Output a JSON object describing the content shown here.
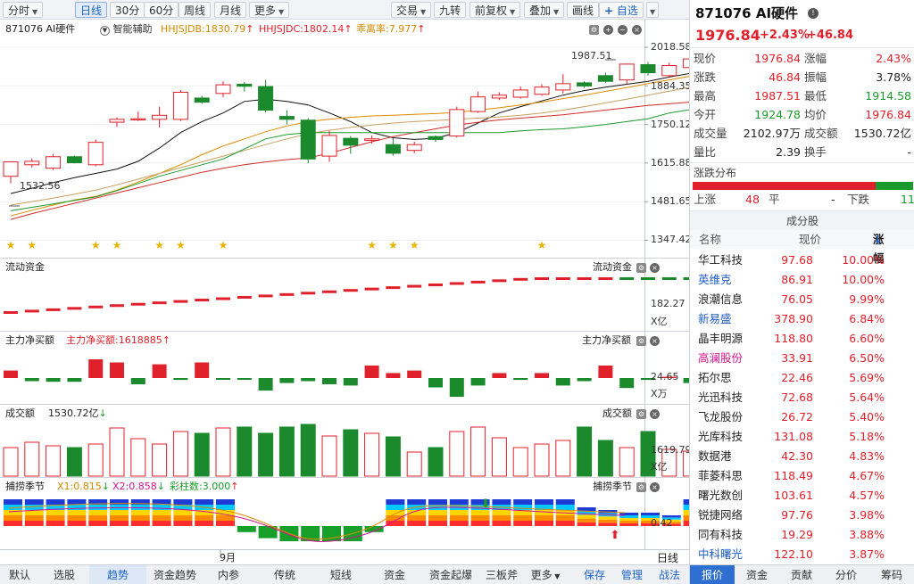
{
  "toolbar": {
    "tabs": [
      "分时",
      "日线",
      "30分",
      "60分",
      "周线",
      "月线",
      "更多"
    ],
    "active_index": 1,
    "right_buttons": [
      "交易",
      "九转",
      "前复权",
      "叠加",
      "画线",
      "自选"
    ]
  },
  "main_chart": {
    "symbol_label": "871076 AI硬件",
    "assist_label": "智能辅助",
    "ind1": "HHJSJDB:1830.79",
    "ind2": "HHJSJDC:1802.14",
    "ind3": "乖离率:7.977",
    "max_label": "1987.51",
    "min_label": "1532.56",
    "y_ticks": [
      "2018.58",
      "1884.35",
      "1750.12",
      "1615.88",
      "1481.65",
      "1347.42"
    ],
    "candles": [
      {
        "o": 1570,
        "h": 1620,
        "l": 1545,
        "c": 1620
      },
      {
        "o": 1610,
        "h": 1632,
        "l": 1600,
        "c": 1622
      },
      {
        "o": 1598,
        "h": 1648,
        "l": 1592,
        "c": 1638
      },
      {
        "o": 1638,
        "h": 1642,
        "l": 1615,
        "c": 1617
      },
      {
        "o": 1610,
        "h": 1698,
        "l": 1605,
        "c": 1688
      },
      {
        "o": 1758,
        "h": 1775,
        "l": 1742,
        "c": 1768
      },
      {
        "o": 1766,
        "h": 1795,
        "l": 1762,
        "c": 1770
      },
      {
        "o": 1768,
        "h": 1812,
        "l": 1740,
        "c": 1782
      },
      {
        "o": 1768,
        "h": 1870,
        "l": 1762,
        "c": 1862
      },
      {
        "o": 1842,
        "h": 1850,
        "l": 1822,
        "c": 1828
      },
      {
        "o": 1858,
        "h": 1900,
        "l": 1845,
        "c": 1888
      },
      {
        "o": 1890,
        "h": 1898,
        "l": 1865,
        "c": 1883
      },
      {
        "o": 1882,
        "h": 1905,
        "l": 1792,
        "c": 1800
      },
      {
        "o": 1778,
        "h": 1800,
        "l": 1750,
        "c": 1768
      },
      {
        "o": 1765,
        "h": 1772,
        "l": 1615,
        "c": 1630
      },
      {
        "o": 1640,
        "h": 1728,
        "l": 1620,
        "c": 1712
      },
      {
        "o": 1702,
        "h": 1710,
        "l": 1648,
        "c": 1678
      },
      {
        "o": 1695,
        "h": 1712,
        "l": 1683,
        "c": 1700
      },
      {
        "o": 1680,
        "h": 1702,
        "l": 1642,
        "c": 1650
      },
      {
        "o": 1660,
        "h": 1690,
        "l": 1650,
        "c": 1680
      },
      {
        "o": 1708,
        "h": 1712,
        "l": 1690,
        "c": 1698
      },
      {
        "o": 1710,
        "h": 1812,
        "l": 1705,
        "c": 1802
      },
      {
        "o": 1795,
        "h": 1865,
        "l": 1790,
        "c": 1846
      },
      {
        "o": 1842,
        "h": 1862,
        "l": 1835,
        "c": 1852
      },
      {
        "o": 1845,
        "h": 1882,
        "l": 1840,
        "c": 1870
      },
      {
        "o": 1855,
        "h": 1890,
        "l": 1850,
        "c": 1880
      },
      {
        "o": 1870,
        "h": 1925,
        "l": 1858,
        "c": 1892
      },
      {
        "o": 1895,
        "h": 1900,
        "l": 1878,
        "c": 1884
      },
      {
        "o": 1920,
        "h": 1930,
        "l": 1895,
        "c": 1900
      },
      {
        "o": 1905,
        "h": 1962,
        "l": 1890,
        "c": 1960
      },
      {
        "o": 1958,
        "h": 1968,
        "l": 1920,
        "c": 1930
      },
      {
        "o": 1920,
        "h": 1965,
        "l": 1912,
        "c": 1955
      },
      {
        "o": 1948,
        "h": 1988,
        "l": 1935,
        "c": 1978
      }
    ],
    "ma": {
      "black": [
        1510,
        1528,
        1548,
        1565,
        1580,
        1595,
        1622,
        1668,
        1722,
        1760,
        1790,
        1830,
        1838,
        1830,
        1818,
        1790,
        1760,
        1722,
        1704,
        1698,
        1702,
        1722,
        1755,
        1790,
        1812,
        1832,
        1852,
        1868,
        1880,
        1890,
        1900,
        1915,
        1928
      ],
      "orange": [
        1432,
        1452,
        1470,
        1488,
        1500,
        1522,
        1550,
        1580,
        1610,
        1645,
        1675,
        1700,
        1725,
        1745,
        1760,
        1768,
        1775,
        1780,
        1782,
        1785,
        1788,
        1792,
        1800,
        1808,
        1818,
        1828,
        1840,
        1852,
        1865,
        1878,
        1892,
        1905,
        1918
      ],
      "tan": [
        1470,
        1482,
        1494,
        1508,
        1522,
        1540,
        1560,
        1580,
        1600,
        1620,
        1640,
        1660,
        1680,
        1700,
        1718,
        1730,
        1740,
        1748,
        1755,
        1760,
        1764,
        1768,
        1772,
        1776,
        1782,
        1790,
        1800,
        1812,
        1825,
        1838,
        1852,
        1866,
        1880
      ],
      "red": [
        1420,
        1440,
        1458,
        1476,
        1494,
        1512,
        1530,
        1548,
        1566,
        1584,
        1598,
        1610,
        1620,
        1628,
        1634,
        1650,
        1670,
        1690,
        1708,
        1722,
        1735,
        1748,
        1758,
        1766,
        1772,
        1778,
        1784,
        1792,
        1800,
        1808,
        1816,
        1822,
        1828
      ],
      "green": [
        1450,
        1462,
        1474,
        1486,
        1498,
        1520,
        1545,
        1570,
        1590,
        1610,
        1630,
        1665,
        1700,
        1715,
        1722,
        1722,
        1722,
        1722,
        1722,
        1722,
        1722,
        1722,
        1722,
        1722,
        1728,
        1732,
        1735,
        1742,
        1750,
        1760,
        1770,
        1790,
        1802
      ]
    },
    "star_indices": [
      0,
      1,
      4,
      5,
      7,
      8,
      10,
      17,
      18,
      19,
      25
    ]
  },
  "flow_panel": {
    "title": "流动资金",
    "right_title": "流动资金",
    "tick": "182.27",
    "unit": "X亿",
    "values": [
      -1,
      -2,
      -3,
      -4,
      -5,
      -6,
      -7,
      -8,
      -9,
      -10,
      -11,
      -12,
      -13,
      -14,
      -14,
      -15,
      -15,
      -15,
      -16,
      -16,
      -16,
      -16,
      -16,
      -16,
      -16,
      -16,
      -16,
      -16,
      -16,
      -16,
      -16,
      -17,
      -17
    ]
  },
  "net_panel": {
    "title": "主力净买额",
    "value_label": "主力净买额:1618885",
    "right_title": "主力净买额",
    "tick": "24.65",
    "unit": "X万",
    "values": [
      -12,
      -5,
      -6,
      -6,
      -30,
      -25,
      -10,
      -22,
      -3,
      -25,
      -2,
      0,
      -20,
      -8,
      -5,
      -10,
      -12,
      -20,
      -8,
      -12,
      -15,
      -30,
      -12,
      -8,
      -3,
      -8,
      -12,
      -5,
      -20,
      -16,
      -3,
      -2,
      -8
    ]
  },
  "vol_panel": {
    "title": "成交额",
    "value_label": "1530.72亿",
    "right_title": "成交额",
    "tick": "1619.79",
    "unit": "X亿",
    "values": [
      32,
      38,
      34,
      32,
      36,
      54,
      42,
      36,
      50,
      48,
      54,
      55,
      48,
      55,
      58,
      45,
      52,
      48,
      44,
      27,
      32,
      50,
      55,
      43,
      32,
      36,
      40,
      55,
      40,
      32,
      50,
      30,
      28
    ]
  },
  "season_panel": {
    "title": "捕捞季节",
    "x1": "X1:0.815",
    "x2": "X2:0.858",
    "cai": "彩柱数:3.000",
    "right_title": "捕捞季节",
    "tick": "0.42",
    "values": [
      1,
      1,
      1,
      1,
      1,
      1,
      1,
      1,
      1,
      1,
      1,
      -0.4,
      -0.8,
      -1,
      -1,
      -1,
      -1,
      -0.4,
      1,
      1,
      1,
      1,
      1,
      1,
      1,
      1,
      1,
      0.7,
      0.6,
      0.5,
      0.5,
      0.4,
      1
    ]
  },
  "x_axis": {
    "month": "9月",
    "mode": "日线"
  },
  "bottom_tabs": [
    "默认",
    "选股",
    "趋势",
    "资金趋势",
    "内参",
    "传统",
    "短线",
    "资金",
    "资金起爆",
    "三板斧",
    "更多",
    "保存",
    "管理",
    "战法"
  ],
  "bottom_active": 2,
  "right_panel": {
    "stock_title": "871076 AI硬件",
    "price": "1976.84",
    "change_pct": "+2.43%",
    "change_amt": "+46.84",
    "quotes": [
      [
        "现价",
        "1976.84",
        "red",
        "涨幅",
        "2.43%",
        "red"
      ],
      [
        "涨跌",
        "46.84",
        "red",
        "振幅",
        "3.78%",
        "black"
      ],
      [
        "最高",
        "1987.51",
        "red",
        "最低",
        "1914.58",
        "green"
      ],
      [
        "今开",
        "1924.78",
        "green",
        "均价",
        "1976.84",
        "red"
      ],
      [
        "成交量",
        "2102.97万",
        "black",
        "成交额",
        "1530.72亿",
        "black"
      ],
      [
        "量比",
        "2.39",
        "black",
        "换手",
        "-",
        "black"
      ]
    ],
    "dist_title": "涨跌分布",
    "up_label": "上涨",
    "up_count": "48",
    "flat_label": "平",
    "flat_count": "-",
    "down_label": "下跌",
    "down_count": "11",
    "constituents_title": "成分股",
    "col_name": "名称",
    "col_price": "现价",
    "col_pct": "涨幅",
    "constituents": [
      {
        "name": "华工科技",
        "price": "97.68",
        "pct": "10.00%",
        "color": "black"
      },
      {
        "name": "英维克",
        "price": "86.91",
        "pct": "10.00%",
        "color": "blue"
      },
      {
        "name": "浪潮信息",
        "price": "76.05",
        "pct": "9.99%",
        "color": "black"
      },
      {
        "name": "新易盛",
        "price": "378.90",
        "pct": "6.84%",
        "color": "blue"
      },
      {
        "name": "晶丰明源",
        "price": "118.80",
        "pct": "6.60%",
        "color": "black"
      },
      {
        "name": "高澜股份",
        "price": "33.91",
        "pct": "6.50%",
        "color": "pink"
      },
      {
        "name": "拓尔思",
        "price": "22.46",
        "pct": "5.69%",
        "color": "black"
      },
      {
        "name": "光迅科技",
        "price": "72.68",
        "pct": "5.64%",
        "color": "black"
      },
      {
        "name": "飞龙股份",
        "price": "26.72",
        "pct": "5.40%",
        "color": "black"
      },
      {
        "name": "光库科技",
        "price": "131.08",
        "pct": "5.18%",
        "color": "black"
      },
      {
        "name": "数据港",
        "price": "42.30",
        "pct": "4.83%",
        "color": "black"
      },
      {
        "name": "菲菱科思",
        "price": "118.49",
        "pct": "4.67%",
        "color": "black"
      },
      {
        "name": "曙光数创",
        "price": "103.61",
        "pct": "4.57%",
        "color": "black"
      },
      {
        "name": "锐捷网络",
        "price": "97.76",
        "pct": "3.98%",
        "color": "black"
      },
      {
        "name": "同有科技",
        "price": "19.29",
        "pct": "3.88%",
        "color": "black"
      },
      {
        "name": "中科曙光",
        "price": "122.10",
        "pct": "3.87%",
        "color": "blue"
      }
    ],
    "bottom_tabs": [
      "报价",
      "资金",
      "贡献",
      "分价",
      "筹码"
    ]
  }
}
